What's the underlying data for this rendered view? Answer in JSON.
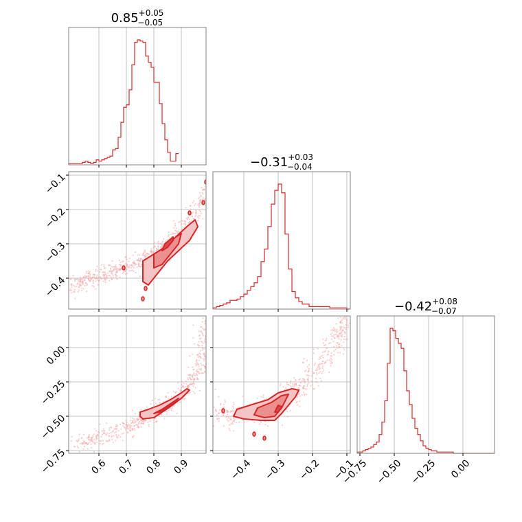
{
  "chart_data": {
    "type": "corner",
    "colors": {
      "accent": "#d62728",
      "grid": "#b0b0b0",
      "frame": "#808080",
      "points": "#f4a6a6"
    },
    "parameters": [
      {
        "range": [
          0.49,
          0.99
        ],
        "ticks": [
          0.6,
          0.7,
          0.8,
          0.9
        ],
        "tick_labels": [
          "0.6",
          "0.7",
          "0.8",
          "0.9"
        ],
        "title": {
          "main": "0.85",
          "plus": "+0.05",
          "minus": "−0.05"
        },
        "hist": {
          "start": 0.49,
          "width": 0.01,
          "counts": [
            1,
            1,
            1,
            1,
            1,
            2,
            3,
            2,
            1,
            2,
            4,
            3,
            4,
            5,
            6,
            7,
            12,
            13,
            22,
            34,
            46,
            48,
            60,
            80,
            98,
            100,
            99,
            98,
            87,
            82,
            78,
            66,
            66,
            49,
            33,
            20,
            10,
            3,
            3,
            9
          ]
        }
      },
      {
        "range": [
          -0.49,
          -0.09
        ],
        "ticks": [
          -0.4,
          -0.3,
          -0.2,
          -0.1
        ],
        "tick_labels": [
          "−0.4",
          "−0.3",
          "−0.2",
          "−0.1"
        ],
        "title": {
          "main": "−0.31",
          "plus": "+0.03",
          "minus": "−0.04"
        },
        "hist": {
          "start": -0.49,
          "width": 0.01,
          "counts": [
            1,
            2,
            3,
            4,
            5,
            7,
            7,
            8,
            10,
            12,
            15,
            18,
            21,
            26,
            38,
            48,
            66,
            84,
            95,
            100,
            93,
            60,
            32,
            14,
            9,
            6,
            4,
            4,
            2,
            2,
            2,
            2,
            2,
            2,
            1,
            1,
            1,
            1,
            1,
            0
          ]
        }
      },
      {
        "range": [
          -0.77,
          0.23
        ],
        "ticks": [
          -0.75,
          -0.5,
          -0.25,
          0.0
        ],
        "tick_labels": [
          "−0.75",
          "−0.50",
          "−0.25",
          "0.00"
        ],
        "title": {
          "main": "−0.42",
          "plus": "+0.08",
          "minus": "−0.07"
        },
        "hist": {
          "start": -0.77,
          "width": 0.02,
          "counts": [
            1,
            1,
            2,
            3,
            4,
            5,
            7,
            9,
            15,
            25,
            42,
            72,
            100,
            98,
            92,
            88,
            84,
            66,
            50,
            39,
            28,
            20,
            15,
            10,
            6,
            4,
            3,
            2,
            2,
            1,
            1,
            1,
            1,
            1,
            1,
            0,
            0,
            0,
            0,
            0,
            0,
            0,
            0,
            0,
            0,
            0,
            0,
            0,
            0,
            0
          ]
        }
      }
    ],
    "pairs": [
      {
        "x_param": 0,
        "y_param": 1,
        "ridge": [
          [
            0.5,
            -0.43
          ],
          [
            0.55,
            -0.41
          ],
          [
            0.6,
            -0.4
          ],
          [
            0.65,
            -0.38
          ],
          [
            0.7,
            -0.37
          ],
          [
            0.75,
            -0.35
          ],
          [
            0.8,
            -0.33
          ],
          [
            0.85,
            -0.3
          ],
          [
            0.9,
            -0.27
          ],
          [
            0.95,
            -0.22
          ],
          [
            0.99,
            -0.14
          ]
        ],
        "spread": 0.03,
        "contours": [
          [
            [
              0.76,
              -0.41
            ],
            [
              0.76,
              -0.35
            ],
            [
              0.8,
              -0.33
            ],
            [
              0.84,
              -0.31
            ],
            [
              0.88,
              -0.28
            ],
            [
              0.92,
              -0.25
            ],
            [
              0.95,
              -0.23
            ],
            [
              0.96,
              -0.25
            ],
            [
              0.93,
              -0.29
            ],
            [
              0.89,
              -0.32
            ],
            [
              0.85,
              -0.35
            ],
            [
              0.82,
              -0.38
            ],
            [
              0.78,
              -0.42
            ]
          ],
          [
            [
              0.8,
              -0.37
            ],
            [
              0.8,
              -0.33
            ],
            [
              0.84,
              -0.31
            ],
            [
              0.88,
              -0.28
            ],
            [
              0.9,
              -0.27
            ],
            [
              0.89,
              -0.3
            ],
            [
              0.86,
              -0.33
            ],
            [
              0.83,
              -0.36
            ]
          ],
          [
            [
              0.83,
              -0.32
            ],
            [
              0.84,
              -0.3
            ],
            [
              0.87,
              -0.28
            ],
            [
              0.87,
              -0.29
            ],
            [
              0.85,
              -0.31
            ]
          ]
        ],
        "islands": [
          [
            0.69,
            -0.37
          ],
          [
            0.76,
            -0.46
          ],
          [
            0.77,
            -0.43
          ],
          [
            0.93,
            -0.21
          ],
          [
            0.98,
            -0.18
          ],
          [
            0.99,
            -0.12
          ]
        ]
      },
      {
        "x_param": 0,
        "y_param": 2,
        "ridge": [
          [
            0.52,
            -0.7
          ],
          [
            0.6,
            -0.66
          ],
          [
            0.7,
            -0.59
          ],
          [
            0.75,
            -0.53
          ],
          [
            0.8,
            -0.48
          ],
          [
            0.85,
            -0.42
          ],
          [
            0.9,
            -0.33
          ],
          [
            0.95,
            -0.2
          ],
          [
            0.98,
            -0.05
          ],
          [
            0.99,
            0.2
          ]
        ],
        "spread": 0.03,
        "contours": [
          [
            [
              0.75,
              -0.47
            ],
            [
              0.78,
              -0.45
            ],
            [
              0.82,
              -0.42
            ],
            [
              0.86,
              -0.38
            ],
            [
              0.9,
              -0.33
            ],
            [
              0.92,
              -0.3
            ],
            [
              0.93,
              -0.31
            ],
            [
              0.9,
              -0.37
            ],
            [
              0.86,
              -0.43
            ],
            [
              0.83,
              -0.47
            ],
            [
              0.8,
              -0.51
            ],
            [
              0.76,
              -0.52
            ],
            [
              0.75,
              -0.5
            ]
          ],
          [
            [
              0.8,
              -0.48
            ],
            [
              0.83,
              -0.45
            ],
            [
              0.86,
              -0.41
            ],
            [
              0.89,
              -0.37
            ],
            [
              0.88,
              -0.39
            ],
            [
              0.85,
              -0.44
            ],
            [
              0.82,
              -0.47
            ]
          ],
          [
            [
              0.82,
              -0.47
            ],
            [
              0.84,
              -0.45
            ],
            [
              0.86,
              -0.42
            ],
            [
              0.85,
              -0.44
            ]
          ]
        ],
        "islands": []
      },
      {
        "x_param": 1,
        "y_param": 2,
        "ridge": [
          [
            -0.48,
            -0.48
          ],
          [
            -0.42,
            -0.49
          ],
          [
            -0.36,
            -0.48
          ],
          [
            -0.32,
            -0.45
          ],
          [
            -0.28,
            -0.38
          ],
          [
            -0.24,
            -0.3
          ],
          [
            -0.2,
            -0.2
          ],
          [
            -0.16,
            -0.05
          ],
          [
            -0.12,
            0.1
          ],
          [
            -0.1,
            0.2
          ]
        ],
        "spread": 0.05,
        "contours": [
          [
            [
              -0.43,
              -0.5
            ],
            [
              -0.42,
              -0.45
            ],
            [
              -0.37,
              -0.41
            ],
            [
              -0.33,
              -0.38
            ],
            [
              -0.3,
              -0.33
            ],
            [
              -0.26,
              -0.3
            ],
            [
              -0.24,
              -0.31
            ],
            [
              -0.25,
              -0.36
            ],
            [
              -0.27,
              -0.42
            ],
            [
              -0.29,
              -0.48
            ],
            [
              -0.31,
              -0.53
            ],
            [
              -0.35,
              -0.53
            ],
            [
              -0.4,
              -0.52
            ]
          ],
          [
            [
              -0.37,
              -0.49
            ],
            [
              -0.36,
              -0.44
            ],
            [
              -0.32,
              -0.4
            ],
            [
              -0.29,
              -0.35
            ],
            [
              -0.27,
              -0.34
            ],
            [
              -0.28,
              -0.39
            ],
            [
              -0.29,
              -0.44
            ],
            [
              -0.31,
              -0.5
            ],
            [
              -0.34,
              -0.51
            ]
          ],
          [
            [
              -0.31,
              -0.47
            ],
            [
              -0.3,
              -0.42
            ],
            [
              -0.29,
              -0.43
            ],
            [
              -0.3,
              -0.47
            ]
          ]
        ],
        "islands": [
          [
            -0.46,
            -0.46
          ],
          [
            -0.37,
            -0.63
          ],
          [
            -0.34,
            -0.66
          ]
        ]
      }
    ]
  }
}
